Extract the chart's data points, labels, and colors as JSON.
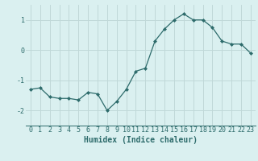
{
  "x": [
    0,
    1,
    2,
    3,
    4,
    5,
    6,
    7,
    8,
    9,
    10,
    11,
    12,
    13,
    14,
    15,
    16,
    17,
    18,
    19,
    20,
    21,
    22,
    23
  ],
  "y": [
    -1.3,
    -1.25,
    -1.55,
    -1.6,
    -1.6,
    -1.65,
    -1.4,
    -1.45,
    -2.0,
    -1.7,
    -1.3,
    -0.7,
    -0.6,
    0.3,
    0.7,
    1.0,
    1.2,
    1.0,
    1.0,
    0.75,
    0.3,
    0.2,
    0.2,
    -0.1
  ],
  "xlabel": "Humidex (Indice chaleur)",
  "ylim": [
    -2.5,
    1.5
  ],
  "xlim": [
    -0.5,
    23.5
  ],
  "yticks": [
    -2,
    -1,
    0,
    1
  ],
  "xticks": [
    0,
    1,
    2,
    3,
    4,
    5,
    6,
    7,
    8,
    9,
    10,
    11,
    12,
    13,
    14,
    15,
    16,
    17,
    18,
    19,
    20,
    21,
    22,
    23
  ],
  "line_color": "#2d6b6b",
  "marker": "D",
  "marker_size": 2.0,
  "bg_color": "#daf0f0",
  "grid_color": "#c0d8d8",
  "xlabel_color": "#2d6b6b",
  "tick_color": "#2d6b6b",
  "xlabel_fontsize": 7,
  "tick_fontsize": 6,
  "linewidth": 0.9
}
